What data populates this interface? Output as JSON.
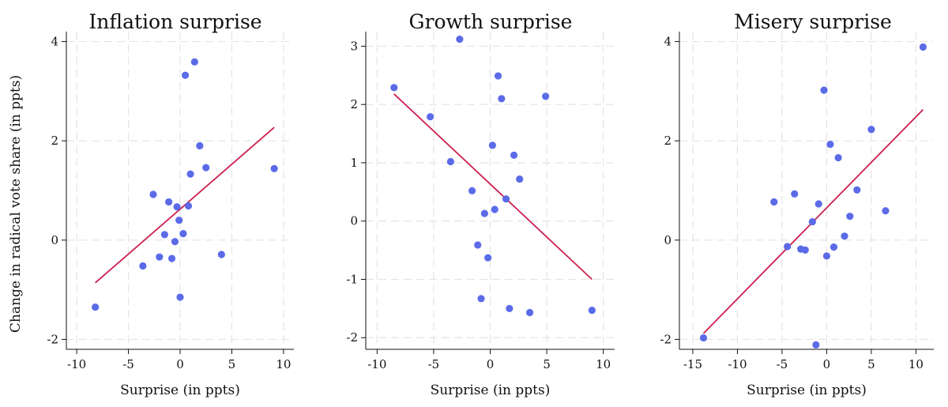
{
  "y_axis_label": "Change in radical vote share (in ppts)",
  "colors": {
    "points": "#5b6be8",
    "fit_line": "#cc1f4f",
    "grid": "#e4e4e4"
  },
  "chart_data": [
    {
      "type": "scatter",
      "title": "Inflation surprise",
      "xlabel": "Surprise (in ppts)",
      "ylabel": "Change in radical vote share (in ppts)",
      "xlim": [
        -11,
        11
      ],
      "ylim": [
        -2.2,
        4.2
      ],
      "xticks": [
        -10,
        -5,
        0,
        5,
        10
      ],
      "yticks": [
        -2,
        0,
        2,
        4
      ],
      "grid": true,
      "points": [
        {
          "x": -8.2,
          "y": -1.35
        },
        {
          "x": -3.6,
          "y": -0.52
        },
        {
          "x": -2.6,
          "y": 0.92
        },
        {
          "x": -2.0,
          "y": -0.34
        },
        {
          "x": -1.5,
          "y": 0.11
        },
        {
          "x": -1.1,
          "y": 0.77
        },
        {
          "x": -0.8,
          "y": -0.37
        },
        {
          "x": -0.5,
          "y": -0.03
        },
        {
          "x": -0.3,
          "y": 0.67
        },
        {
          "x": -0.1,
          "y": 0.4
        },
        {
          "x": 0.0,
          "y": -1.15
        },
        {
          "x": 0.3,
          "y": 0.13
        },
        {
          "x": 0.5,
          "y": 3.32
        },
        {
          "x": 0.8,
          "y": 0.69
        },
        {
          "x": 1.0,
          "y": 1.33
        },
        {
          "x": 1.4,
          "y": 3.59
        },
        {
          "x": 1.9,
          "y": 1.9
        },
        {
          "x": 2.5,
          "y": 1.46
        },
        {
          "x": 4.0,
          "y": -0.29
        },
        {
          "x": 9.1,
          "y": 1.44
        }
      ],
      "fit_line": {
        "x": [
          -8.2,
          9.1
        ],
        "y": [
          -0.86,
          2.27
        ]
      }
    },
    {
      "type": "scatter",
      "title": "Growth surprise",
      "xlabel": "Surprise (in ppts)",
      "ylabel": "",
      "xlim": [
        -11,
        11
      ],
      "ylim": [
        -2.2,
        3.25
      ],
      "xticks": [
        -10,
        -5,
        0,
        5,
        10
      ],
      "yticks": [
        -2,
        -1,
        0,
        1,
        2,
        3
      ],
      "grid": true,
      "points": [
        {
          "x": -8.5,
          "y": 2.29
        },
        {
          "x": -5.3,
          "y": 1.79
        },
        {
          "x": -3.5,
          "y": 1.02
        },
        {
          "x": -2.7,
          "y": 3.12
        },
        {
          "x": -1.6,
          "y": 0.52
        },
        {
          "x": -1.1,
          "y": -0.41
        },
        {
          "x": -0.8,
          "y": -1.33
        },
        {
          "x": -0.5,
          "y": 0.13
        },
        {
          "x": -0.2,
          "y": -0.63
        },
        {
          "x": 0.2,
          "y": 1.3
        },
        {
          "x": 0.4,
          "y": 0.2
        },
        {
          "x": 0.7,
          "y": 2.49
        },
        {
          "x": 1.0,
          "y": 2.1
        },
        {
          "x": 1.4,
          "y": 0.38
        },
        {
          "x": 1.7,
          "y": -1.5
        },
        {
          "x": 2.1,
          "y": 1.13
        },
        {
          "x": 2.6,
          "y": 0.72
        },
        {
          "x": 3.5,
          "y": -1.57
        },
        {
          "x": 4.9,
          "y": 2.14
        },
        {
          "x": 9.0,
          "y": -1.53
        }
      ],
      "fit_line": {
        "x": [
          -8.5,
          9.0
        ],
        "y": [
          2.18,
          -1.0
        ]
      }
    },
    {
      "type": "scatter",
      "title": "Misery surprise",
      "xlabel": "Surprise (in ppts)",
      "ylabel": "",
      "xlim": [
        -16.5,
        12
      ],
      "ylim": [
        -2.2,
        4.2
      ],
      "xticks": [
        -15,
        -10,
        -5,
        0,
        5,
        10
      ],
      "yticks": [
        -2,
        0,
        2,
        4
      ],
      "grid": true,
      "points": [
        {
          "x": -13.8,
          "y": -1.97
        },
        {
          "x": -5.9,
          "y": 0.77
        },
        {
          "x": -4.4,
          "y": -0.13
        },
        {
          "x": -3.6,
          "y": 0.93
        },
        {
          "x": -2.9,
          "y": -0.18
        },
        {
          "x": -2.4,
          "y": -0.2
        },
        {
          "x": -1.6,
          "y": 0.37
        },
        {
          "x": -1.2,
          "y": -2.11
        },
        {
          "x": -0.9,
          "y": 0.73
        },
        {
          "x": -0.3,
          "y": 3.02
        },
        {
          "x": 0.0,
          "y": -0.32
        },
        {
          "x": 0.4,
          "y": 1.93
        },
        {
          "x": 0.8,
          "y": -0.14
        },
        {
          "x": 1.3,
          "y": 1.66
        },
        {
          "x": 2.0,
          "y": 0.08
        },
        {
          "x": 2.6,
          "y": 0.48
        },
        {
          "x": 3.4,
          "y": 1.01
        },
        {
          "x": 5.0,
          "y": 2.23
        },
        {
          "x": 6.6,
          "y": 0.59
        },
        {
          "x": 10.8,
          "y": 3.89
        }
      ],
      "fit_line": {
        "x": [
          -13.8,
          10.8
        ],
        "y": [
          -1.88,
          2.63
        ]
      }
    }
  ]
}
